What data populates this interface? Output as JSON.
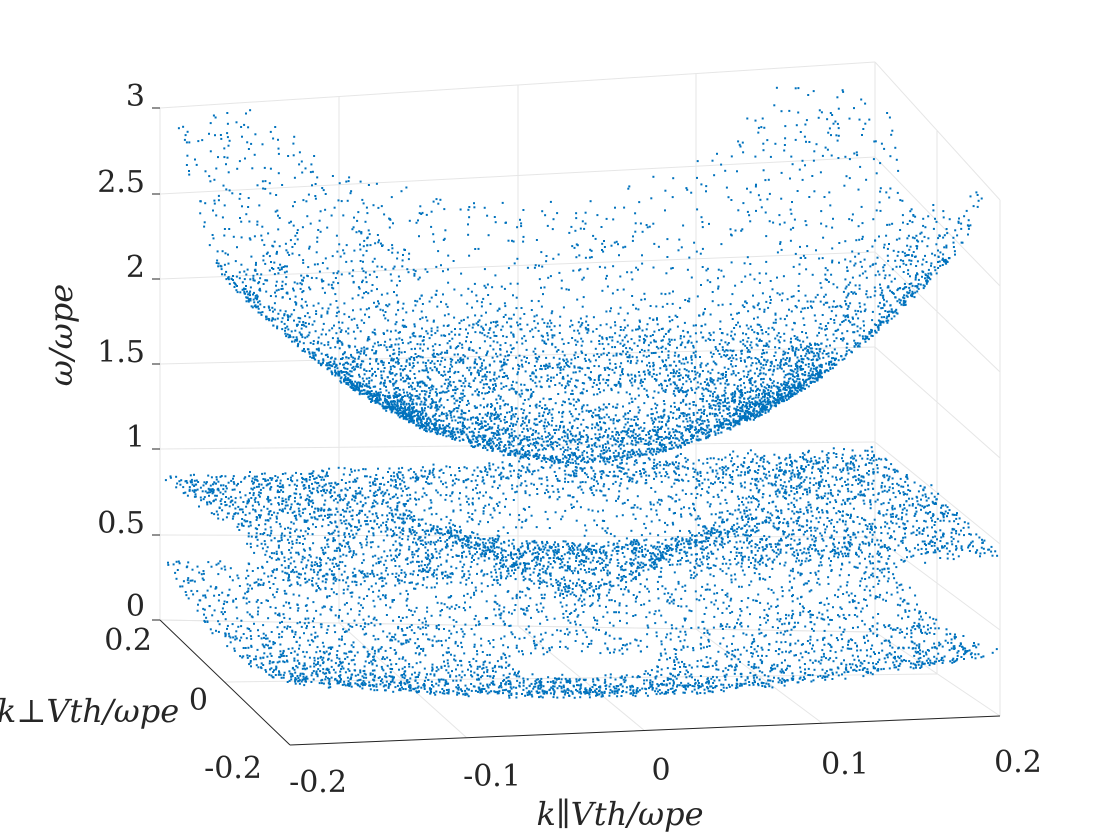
{
  "chart_data": {
    "type": "scatter",
    "plot_style": "3d",
    "title": "",
    "xlabel": "k∥Vth/ωpe",
    "ylabel": "k⊥Vth/ωpe",
    "zlabel": "ω/ωpe",
    "xlim": [
      -0.2,
      0.2
    ],
    "ylim": [
      -0.2,
      0.2
    ],
    "zlim": [
      0,
      3
    ],
    "x_ticks": [
      "-0.2",
      "-0.1",
      "0",
      "0.1",
      "0.2"
    ],
    "y_ticks": [
      "-0.2",
      "0",
      "0.2"
    ],
    "z_ticks": [
      "0",
      "0.5",
      "1",
      "1.5",
      "2",
      "2.5",
      "3"
    ],
    "grid": true,
    "marker_color": "#0072bd",
    "series": [
      {
        "shape": "upper-parabola",
        "z_min": 1.25,
        "z_max": 3.0
      },
      {
        "shape": "middle-band",
        "z_min": 0.4,
        "z_max": 1.05
      },
      {
        "shape": "lower-band",
        "z_min": 0.0,
        "z_max": 0.6
      }
    ]
  }
}
